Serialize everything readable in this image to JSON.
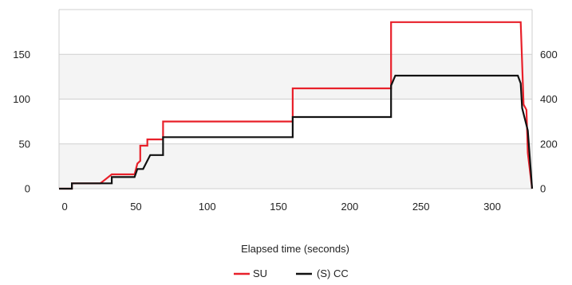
{
  "chart_data": {
    "type": "line",
    "title": "",
    "xlabel": "Elapsed time (seconds)",
    "ylabel_left": "",
    "ylabel_right": "",
    "xlim": [
      -4,
      328
    ],
    "ylim_left": [
      0,
      200
    ],
    "ylim_right": [
      0,
      800
    ],
    "x_ticks": [
      0,
      50,
      100,
      150,
      200,
      250,
      300
    ],
    "y_ticks_left": [
      0,
      50,
      100,
      150
    ],
    "y_ticks_right": [
      0,
      200,
      400,
      600
    ],
    "grid": "horizontal",
    "band_fill": "#f4f4f4",
    "legend_position": "bottom-center",
    "series": [
      {
        "name": "SU",
        "axis": "left",
        "color": "#e8202a",
        "points": [
          [
            -4,
            0
          ],
          [
            5,
            0
          ],
          [
            5,
            6
          ],
          [
            25,
            6
          ],
          [
            33,
            16
          ],
          [
            49,
            16
          ],
          [
            51,
            28
          ],
          [
            53,
            31
          ],
          [
            53,
            48
          ],
          [
            58,
            48
          ],
          [
            58,
            55
          ],
          [
            69,
            55
          ],
          [
            69,
            75
          ],
          [
            160,
            75
          ],
          [
            160,
            112
          ],
          [
            229,
            112
          ],
          [
            229,
            186
          ],
          [
            320,
            186
          ],
          [
            322,
            94
          ],
          [
            324,
            88
          ],
          [
            325,
            40
          ],
          [
            328,
            0
          ]
        ]
      },
      {
        "name": "(S) CC",
        "axis": "right",
        "color": "#111111",
        "points": [
          [
            -4,
            0
          ],
          [
            5,
            0
          ],
          [
            5,
            24
          ],
          [
            33,
            24
          ],
          [
            33,
            52
          ],
          [
            49,
            52
          ],
          [
            51,
            88
          ],
          [
            55,
            88
          ],
          [
            60,
            150
          ],
          [
            69,
            150
          ],
          [
            69,
            230
          ],
          [
            160,
            230
          ],
          [
            160,
            320
          ],
          [
            229,
            320
          ],
          [
            229,
            460
          ],
          [
            232,
            505
          ],
          [
            318,
            505
          ],
          [
            320,
            470
          ],
          [
            321,
            360
          ],
          [
            325,
            260
          ],
          [
            328,
            0
          ]
        ]
      }
    ]
  }
}
